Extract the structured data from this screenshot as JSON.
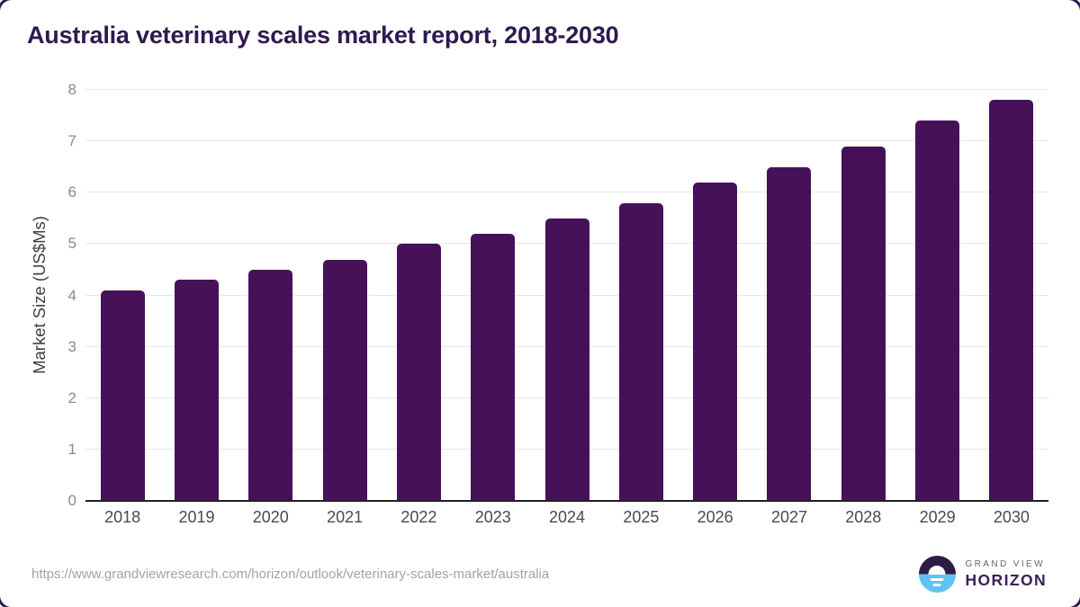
{
  "title": "Australia veterinary scales market report, 2018-2030",
  "footer": {
    "source_url": "https://www.grandviewresearch.com/horizon/outlook/veterinary-scales-market/australia",
    "logo": {
      "top_text": "GRAND VIEW",
      "bottom_text": "HORIZON"
    }
  },
  "colors": {
    "title": "#2e1a4f",
    "bar": "#471159",
    "gridline": "#e7e7e7",
    "axis_line": "#1f1f1f",
    "y_tick_label": "#8a8a8a",
    "x_tick_label": "#4a4a4a",
    "axis_title": "#3f3f3f",
    "source_url": "#a3a3a3",
    "logo_purple": "#2e1c44",
    "logo_blue": "#5ec3ef",
    "logo_text_top": "#63636d",
    "logo_text_bottom": "#38215a"
  },
  "chart_data": {
    "type": "bar",
    "title": "Australia veterinary scales market report, 2018-2030",
    "categories": [
      "2018",
      "2019",
      "2020",
      "2021",
      "2022",
      "2023",
      "2024",
      "2025",
      "2026",
      "2027",
      "2028",
      "2029",
      "2030"
    ],
    "values": [
      4.1,
      4.3,
      4.5,
      4.7,
      5.0,
      5.2,
      5.5,
      5.8,
      6.2,
      6.5,
      6.9,
      7.4,
      7.8
    ],
    "xlabel": "",
    "ylabel": "Market Size (US$Ms)",
    "ylim": [
      0,
      8
    ],
    "yticks": [
      0,
      1,
      2,
      3,
      4,
      5,
      6,
      7,
      8
    ],
    "grid": "horizontal",
    "legend": "none",
    "bar_color": "#471159"
  }
}
